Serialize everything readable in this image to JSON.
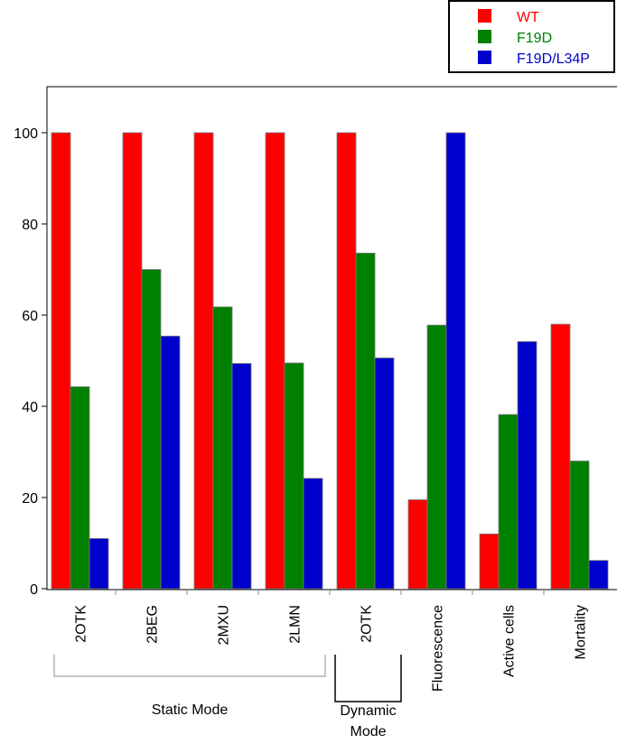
{
  "chart_data": {
    "type": "bar",
    "title": "",
    "xlabel": "",
    "ylabel": "",
    "ylim": [
      0,
      110
    ],
    "yticks": [
      0,
      20,
      40,
      60,
      80,
      100
    ],
    "grid": false,
    "legend_position": "top-right, outside plot",
    "categories": [
      "2OTK",
      "2BEG",
      "2MXU",
      "2LMN",
      "2OTK",
      "Fluorescence",
      "Active cells",
      "Mortality"
    ],
    "series": [
      {
        "name": "WT",
        "color": "#ff0000",
        "values": [
          100,
          100,
          100,
          100,
          100,
          19.5,
          12,
          58
        ]
      },
      {
        "name": "F19D",
        "color": "#008000",
        "values": [
          44.3,
          70,
          61.8,
          49.5,
          73.6,
          57.8,
          38.2,
          28
        ]
      },
      {
        "name": "F19D/L34P",
        "color": "#0000cc",
        "values": [
          11,
          55.4,
          49.4,
          24.2,
          50.6,
          100,
          54.2,
          6.2
        ]
      }
    ],
    "groups": [
      {
        "label": "Static Mode",
        "first_category": 0,
        "last_category": 3
      },
      {
        "label": "Dynamic Mode",
        "lines": [
          "Dynamic",
          "Mode"
        ],
        "first_category": 4,
        "last_category": 4
      }
    ]
  }
}
